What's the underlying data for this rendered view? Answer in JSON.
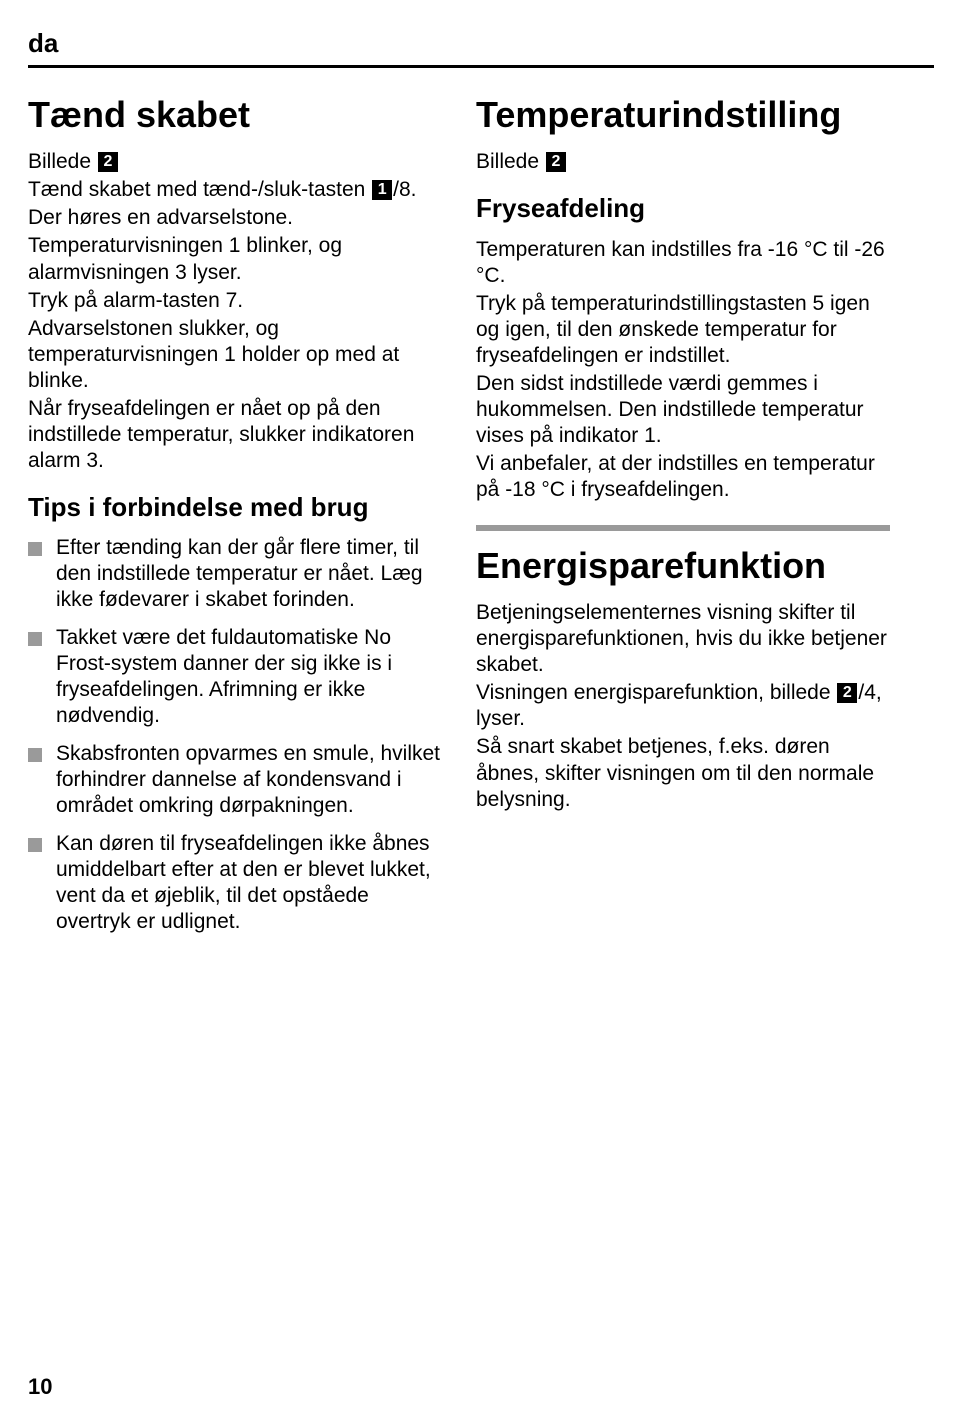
{
  "lang_code": "da",
  "page_number": "10",
  "badges": {
    "one": "1",
    "two": "2"
  },
  "left": {
    "h1": "Tænd skabet",
    "intro": {
      "l1a": "Billede ",
      "l2a": "Tænd skabet med tænd-/sluk-tasten ",
      "l2b": "/8.",
      "l3": "Der høres en advarselstone.",
      "l4": "Temperaturvisningen 1 blinker, og alarmvisningen 3 lyser.",
      "l5": "Tryk på alarm-tasten 7.",
      "l6": "Advarselstonen slukker, og temperaturvisningen 1 holder op med at blinke.",
      "l7": "Når fryseafdelingen er nået op på den indstillede temperatur, slukker indikatoren alarm 3."
    },
    "h2": "Tips i forbindelse med brug",
    "bullets": [
      "Efter tænding kan der går flere timer, til den indstillede temperatur er nået. Læg ikke fødevarer i skabet forinden.",
      "Takket være det fuldautomatiske No Frost-system danner der sig ikke is i fryseafdelingen. Afrimning er ikke nødvendig.",
      "Skabsfronten opvarmes en smule, hvilket forhindrer dannelse af kondensvand i området omkring dørpakningen.",
      "Kan døren til fryseafdelingen ikke åbnes umiddelbart efter at den er blevet lukket, vent da et øjeblik, til det opståede overtryk er udlignet."
    ]
  },
  "right": {
    "h1_temp": "Temperaturindstilling",
    "temp_intro_a": "Billede ",
    "h2_fryse": "Fryseafdeling",
    "fryse_body": {
      "p1": "Temperaturen kan indstilles fra -16 °C til -26 °C.",
      "p2": "Tryk på temperaturindstillingstasten 5 igen og igen, til den ønskede temperatur for fryseafdelingen er indstillet.",
      "p3": "Den sidst indstillede værdi gemmes i hukommelsen. Den indstillede temperatur vises på indikator 1.",
      "p4": "Vi anbefaler, at der indstilles en temperatur på -18 °C i fryseafdelingen."
    },
    "h1_energi": "Energisparefunktion",
    "energi_body": {
      "p1": "Betjeningselementernes visning skifter til energisparefunktionen, hvis du ikke betjener skabet.",
      "p2a": "Visningen energisparefunktion, billede ",
      "p2b": "/4, lyser.",
      "p3": "Så snart skabet betjenes, f.eks. døren åbnes, skifter visningen om til den normale belysning."
    }
  }
}
